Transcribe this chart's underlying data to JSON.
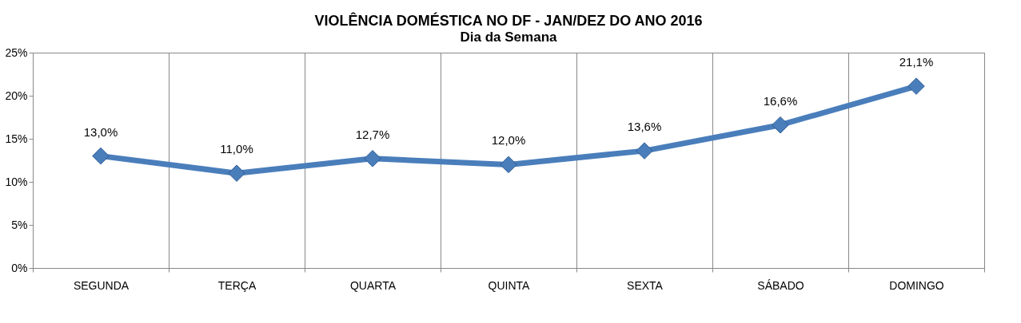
{
  "chart_data": {
    "type": "line",
    "title": "VIOLÊNCIA DOMÉSTICA NO DF - JAN/DEZ DO ANO 2016",
    "subtitle": "Dia da Semana",
    "categories": [
      "SEGUNDA",
      "TERÇA",
      "QUARTA",
      "QUINTA",
      "SEXTA",
      "SÁBADO",
      "DOMINGO"
    ],
    "series": [
      {
        "color": "#4a7ebb",
        "values": [
          13.0,
          11.0,
          12.7,
          12.0,
          13.6,
          16.6,
          21.1
        ],
        "value_labels": [
          "13,0%",
          "11,0%",
          "12,7%",
          "12,0%",
          "13,6%",
          "16,6%",
          "21,1%"
        ]
      }
    ],
    "ylim": [
      0,
      25
    ],
    "yticks": [
      {
        "value": 0,
        "label": "0%"
      },
      {
        "value": 5,
        "label": "5%"
      },
      {
        "value": 10,
        "label": "10%"
      },
      {
        "value": 15,
        "label": "15%"
      },
      {
        "value": 20,
        "label": "20%"
      },
      {
        "value": 25,
        "label": "25%"
      }
    ],
    "grid": "x",
    "marker": "diamond",
    "line_style": "solid"
  }
}
